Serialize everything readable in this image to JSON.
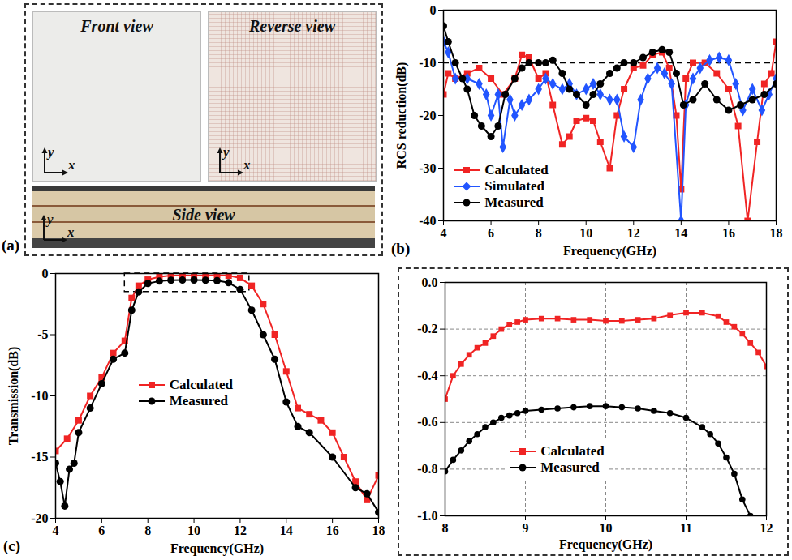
{
  "photos": {
    "panel": "(a)",
    "views": [
      "Front view",
      "Reverse view",
      "Side view"
    ],
    "axis_labels": [
      "x",
      "y"
    ]
  },
  "chart_data": [
    {
      "type": "line",
      "panel": "(b)",
      "xlabel": "Frequency(GHz)",
      "ylabel": "RCS reduction(dB)",
      "xlim": [
        4,
        18
      ],
      "xticks": [
        4,
        6,
        8,
        10,
        12,
        14,
        16,
        18
      ],
      "ylim": [
        -40,
        0
      ],
      "yticks": [
        -40,
        -30,
        -20,
        -10,
        0
      ],
      "reference_line": {
        "value": -10,
        "line_style": "dashed"
      },
      "legend": "lower left",
      "series": [
        {
          "name": "Calculated",
          "color": "#f02424",
          "marker": "square",
          "x": [
            4,
            4.2,
            4.5,
            5,
            5.5,
            6,
            6.5,
            7,
            7.3,
            7.6,
            8,
            8.3,
            8.6,
            9,
            9.3,
            9.6,
            10,
            10.3,
            10.6,
            11,
            11.3,
            11.6,
            12,
            12.4,
            12.8,
            13.2,
            13.5,
            13.8,
            14,
            14.2,
            14.5,
            15,
            15.5,
            16,
            16.4,
            16.8,
            17.2,
            17.5,
            17.8,
            18
          ],
          "values": [
            -16,
            -12,
            -13,
            -12,
            -11,
            -13,
            -16,
            -13,
            -8.5,
            -9,
            -13,
            -12,
            -18,
            -25.5,
            -24,
            -21,
            -20.5,
            -21,
            -25,
            -30,
            -20,
            -15,
            -11,
            -10.5,
            -8.5,
            -8,
            -11,
            -20,
            -34,
            -13,
            -10,
            -10,
            -12,
            -15,
            -22,
            -40,
            -25,
            -14,
            -12,
            -6
          ]
        },
        {
          "name": "Simulated",
          "color": "#2255ff",
          "marker": "diamond",
          "x": [
            4,
            4.2,
            4.5,
            5,
            5.5,
            5.8,
            6,
            6.3,
            6.5,
            6.8,
            7,
            7.3,
            7.6,
            8,
            8.3,
            8.6,
            9,
            9.3,
            9.6,
            10,
            10.3,
            10.6,
            11,
            11.3,
            11.6,
            12,
            12.3,
            12.6,
            13,
            13.3,
            13.6,
            14,
            14.2,
            14.5,
            14.8,
            15.2,
            15.6,
            16,
            16.3,
            16.6,
            17,
            17.4,
            17.7,
            18
          ],
          "values": [
            -6,
            -8,
            -13,
            -13,
            -14,
            -16,
            -20,
            -16,
            -26,
            -17,
            -20,
            -18,
            -17,
            -15,
            -13,
            -14,
            -15,
            -14,
            -16,
            -15,
            -14,
            -16,
            -17,
            -17,
            -24,
            -26,
            -17,
            -13,
            -11,
            -12,
            -14,
            -40,
            -18,
            -13,
            -11,
            -9.5,
            -9,
            -9.5,
            -14,
            -19,
            -15,
            -19,
            -16,
            -13
          ]
        },
        {
          "name": "Measured",
          "color": "#000000",
          "marker": "circle",
          "x": [
            4,
            4.2,
            4.5,
            4.8,
            5,
            5.3,
            5.6,
            6,
            6.3,
            6.6,
            7,
            7.3,
            7.6,
            8,
            8.3,
            8.6,
            9,
            9.3,
            9.6,
            10,
            10.3,
            10.6,
            11,
            11.3,
            11.6,
            12,
            12.4,
            12.8,
            13.2,
            13.5,
            13.8,
            14.1,
            14.5,
            15,
            15.5,
            16,
            16.5,
            17,
            17.5,
            18
          ],
          "values": [
            -3,
            -6,
            -10,
            -13,
            -15,
            -20,
            -22,
            -24,
            -22,
            -16,
            -13,
            -11,
            -10,
            -10,
            -10,
            -9.5,
            -12,
            -15,
            -16,
            -18,
            -16,
            -14,
            -12,
            -11,
            -10,
            -10,
            -9,
            -8,
            -7.5,
            -8,
            -12,
            -18,
            -17,
            -14,
            -17,
            -19,
            -18,
            -17,
            -16,
            -14
          ]
        }
      ]
    },
    {
      "type": "line",
      "panel": "(c)",
      "xlabel": "Frequency(GHz)",
      "ylabel": "Transmission(dB)",
      "xlim": [
        4,
        18
      ],
      "xticks": [
        4,
        6,
        8,
        10,
        12,
        14,
        16,
        18
      ],
      "ylim": [
        -20,
        0
      ],
      "yticks": [
        -20,
        -15,
        -10,
        -5,
        0
      ],
      "zoom_region": {
        "xlim": [
          7,
          12.4
        ],
        "ylim": [
          -1.5,
          0
        ],
        "line_style": "dashed"
      },
      "legend": "center",
      "series": [
        {
          "name": "Calculated",
          "color": "#f02424",
          "marker": "square",
          "x": [
            4,
            4.5,
            5,
            5.5,
            6,
            6.5,
            7,
            7.3,
            7.6,
            8,
            8.5,
            9,
            9.5,
            10,
            10.5,
            11,
            11.5,
            12,
            12.5,
            13,
            13.5,
            14,
            14.5,
            15,
            15.5,
            16,
            16.5,
            17,
            17.5,
            18
          ],
          "values": [
            -14.5,
            -13.5,
            -12,
            -10,
            -8.5,
            -6.5,
            -5.5,
            -2,
            -1,
            -0.5,
            -0.26,
            -0.16,
            -0.16,
            -0.165,
            -0.16,
            -0.13,
            -0.17,
            -0.36,
            -1,
            -2.5,
            -5,
            -8,
            -11,
            -11.5,
            -12,
            -13,
            -15,
            -17,
            -18.5,
            -16.5
          ]
        },
        {
          "name": "Measured",
          "color": "#000000",
          "marker": "circle",
          "x": [
            4,
            4.2,
            4.4,
            4.6,
            4.8,
            5,
            5.5,
            6,
            6.5,
            7,
            7.3,
            7.6,
            8,
            8.5,
            9,
            9.5,
            10,
            10.5,
            11,
            11.5,
            12,
            12.5,
            13,
            13.5,
            14,
            14.5,
            15,
            16,
            17,
            17.5,
            18
          ],
          "values": [
            -15.5,
            -17,
            -19,
            -16,
            -15.5,
            -13,
            -11,
            -9,
            -7,
            -6.5,
            -3,
            -1.5,
            -0.81,
            -0.62,
            -0.55,
            -0.535,
            -0.53,
            -0.55,
            -0.58,
            -0.75,
            -1.3,
            -3,
            -5,
            -7,
            -10.5,
            -12.5,
            -13,
            -15,
            -17.5,
            -18,
            -19.5
          ]
        }
      ]
    },
    {
      "type": "line",
      "xlabel": "Frequency(GHz)",
      "xlim": [
        8,
        12
      ],
      "xticks": [
        8,
        9,
        10,
        11,
        12
      ],
      "ylim": [
        -1,
        0
      ],
      "yticks": [
        {
          "value": -1,
          "label": "-1.0"
        },
        -0.8,
        -0.6,
        -0.4,
        -0.2,
        {
          "value": 0,
          "label": "0.0"
        }
      ],
      "grid": true,
      "legend": "center",
      "series": [
        {
          "name": "Calculated",
          "color": "#f02424",
          "marker": "square",
          "x": [
            8,
            8.1,
            8.2,
            8.3,
            8.4,
            8.5,
            8.6,
            8.7,
            8.8,
            8.9,
            9,
            9.2,
            9.4,
            9.6,
            9.8,
            10,
            10.2,
            10.4,
            10.6,
            10.8,
            11,
            11.2,
            11.4,
            11.5,
            11.6,
            11.7,
            11.8,
            11.9,
            12
          ],
          "values": [
            -0.5,
            -0.4,
            -0.35,
            -0.31,
            -0.28,
            -0.26,
            -0.23,
            -0.2,
            -0.18,
            -0.17,
            -0.16,
            -0.155,
            -0.155,
            -0.16,
            -0.16,
            -0.165,
            -0.165,
            -0.16,
            -0.155,
            -0.14,
            -0.13,
            -0.13,
            -0.145,
            -0.17,
            -0.19,
            -0.22,
            -0.26,
            -0.3,
            -0.36
          ]
        },
        {
          "name": "Measured",
          "color": "#000000",
          "marker": "circle",
          "x": [
            8,
            8.1,
            8.2,
            8.3,
            8.4,
            8.5,
            8.6,
            8.7,
            8.8,
            8.9,
            9,
            9.2,
            9.4,
            9.6,
            9.8,
            10,
            10.2,
            10.4,
            10.6,
            10.8,
            11,
            11.2,
            11.3,
            11.4,
            11.5,
            11.6,
            11.7,
            11.8
          ],
          "values": [
            -0.81,
            -0.76,
            -0.72,
            -0.68,
            -0.65,
            -0.62,
            -0.6,
            -0.58,
            -0.57,
            -0.56,
            -0.55,
            -0.545,
            -0.54,
            -0.535,
            -0.53,
            -0.53,
            -0.535,
            -0.54,
            -0.55,
            -0.56,
            -0.58,
            -0.62,
            -0.65,
            -0.69,
            -0.75,
            -0.82,
            -0.93,
            -1.0
          ]
        }
      ]
    }
  ]
}
